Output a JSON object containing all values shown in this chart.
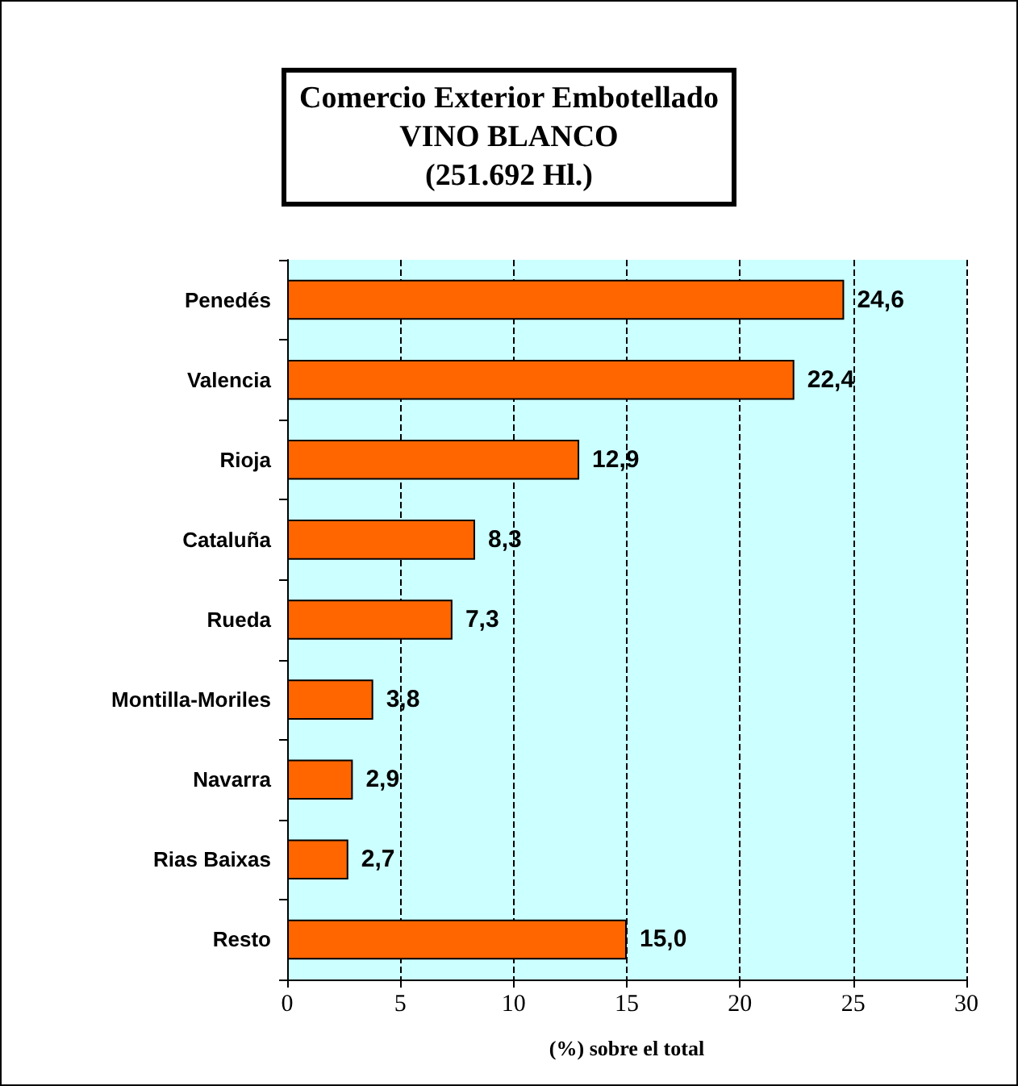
{
  "chart_data": {
    "type": "bar",
    "orientation": "horizontal",
    "title": "Comercio Exterior Embotellado\nVINO BLANCO\n(251.692 Hl.)",
    "xlabel": "(%) sobre el total",
    "categories": [
      "Penedés",
      "Valencia",
      "Rioja",
      "Cataluña",
      "Rueda",
      "Montilla-Moriles",
      "Navarra",
      "Rias Baixas",
      "Resto"
    ],
    "values": [
      24.6,
      22.4,
      12.9,
      8.3,
      7.3,
      3.8,
      2.9,
      2.7,
      15.0
    ],
    "value_labels": [
      "24,6",
      "22,4",
      "12,9",
      "8,3",
      "7,3",
      "3,8",
      "2,9",
      "2,7",
      "15,0"
    ],
    "color": "#ff6600",
    "xlim": [
      0,
      30
    ],
    "xticks": [
      0,
      5,
      10,
      15,
      20,
      25,
      30
    ],
    "grid": "x"
  }
}
